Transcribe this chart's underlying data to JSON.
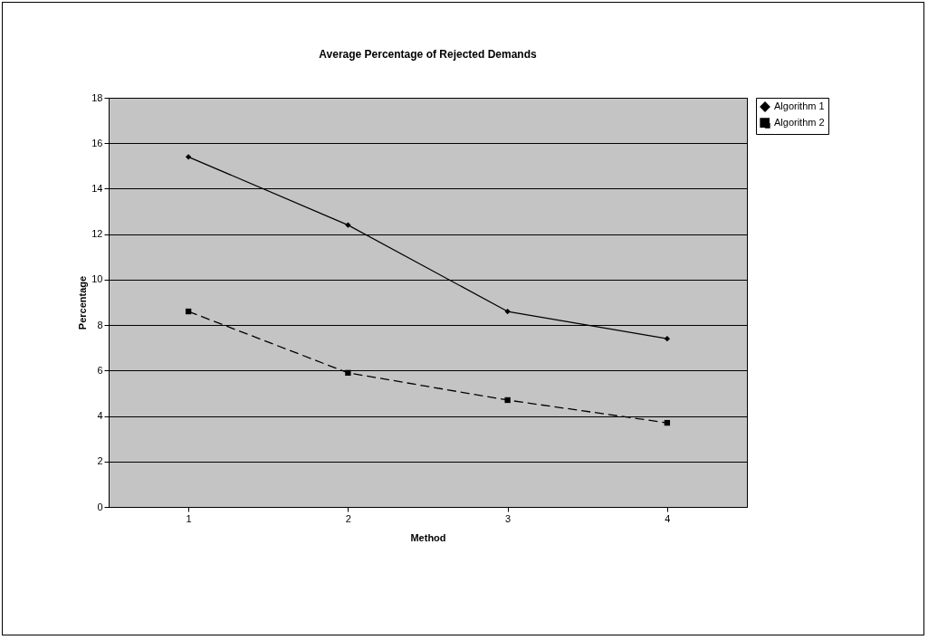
{
  "chart_data": {
    "type": "line",
    "title": "Average Percentage of Rejected Demands",
    "xlabel": "Method",
    "ylabel": "Percentage",
    "categories": [
      "1",
      "2",
      "3",
      "4"
    ],
    "series": [
      {
        "name": "Algorithm 1",
        "color": "#000000",
        "values": [
          15.4,
          12.4,
          8.6,
          7.4
        ],
        "marker": "diamond",
        "line_style": "solid"
      },
      {
        "name": "Algorithm 2",
        "color": "#000000",
        "values": [
          8.6,
          5.9,
          4.7,
          3.7
        ],
        "marker": "square",
        "line_style": "dashed"
      }
    ],
    "ylim": [
      0,
      18
    ],
    "yticks": [
      0,
      2,
      4,
      6,
      8,
      10,
      12,
      14,
      16,
      18
    ],
    "grid": "y",
    "legend": "right"
  }
}
